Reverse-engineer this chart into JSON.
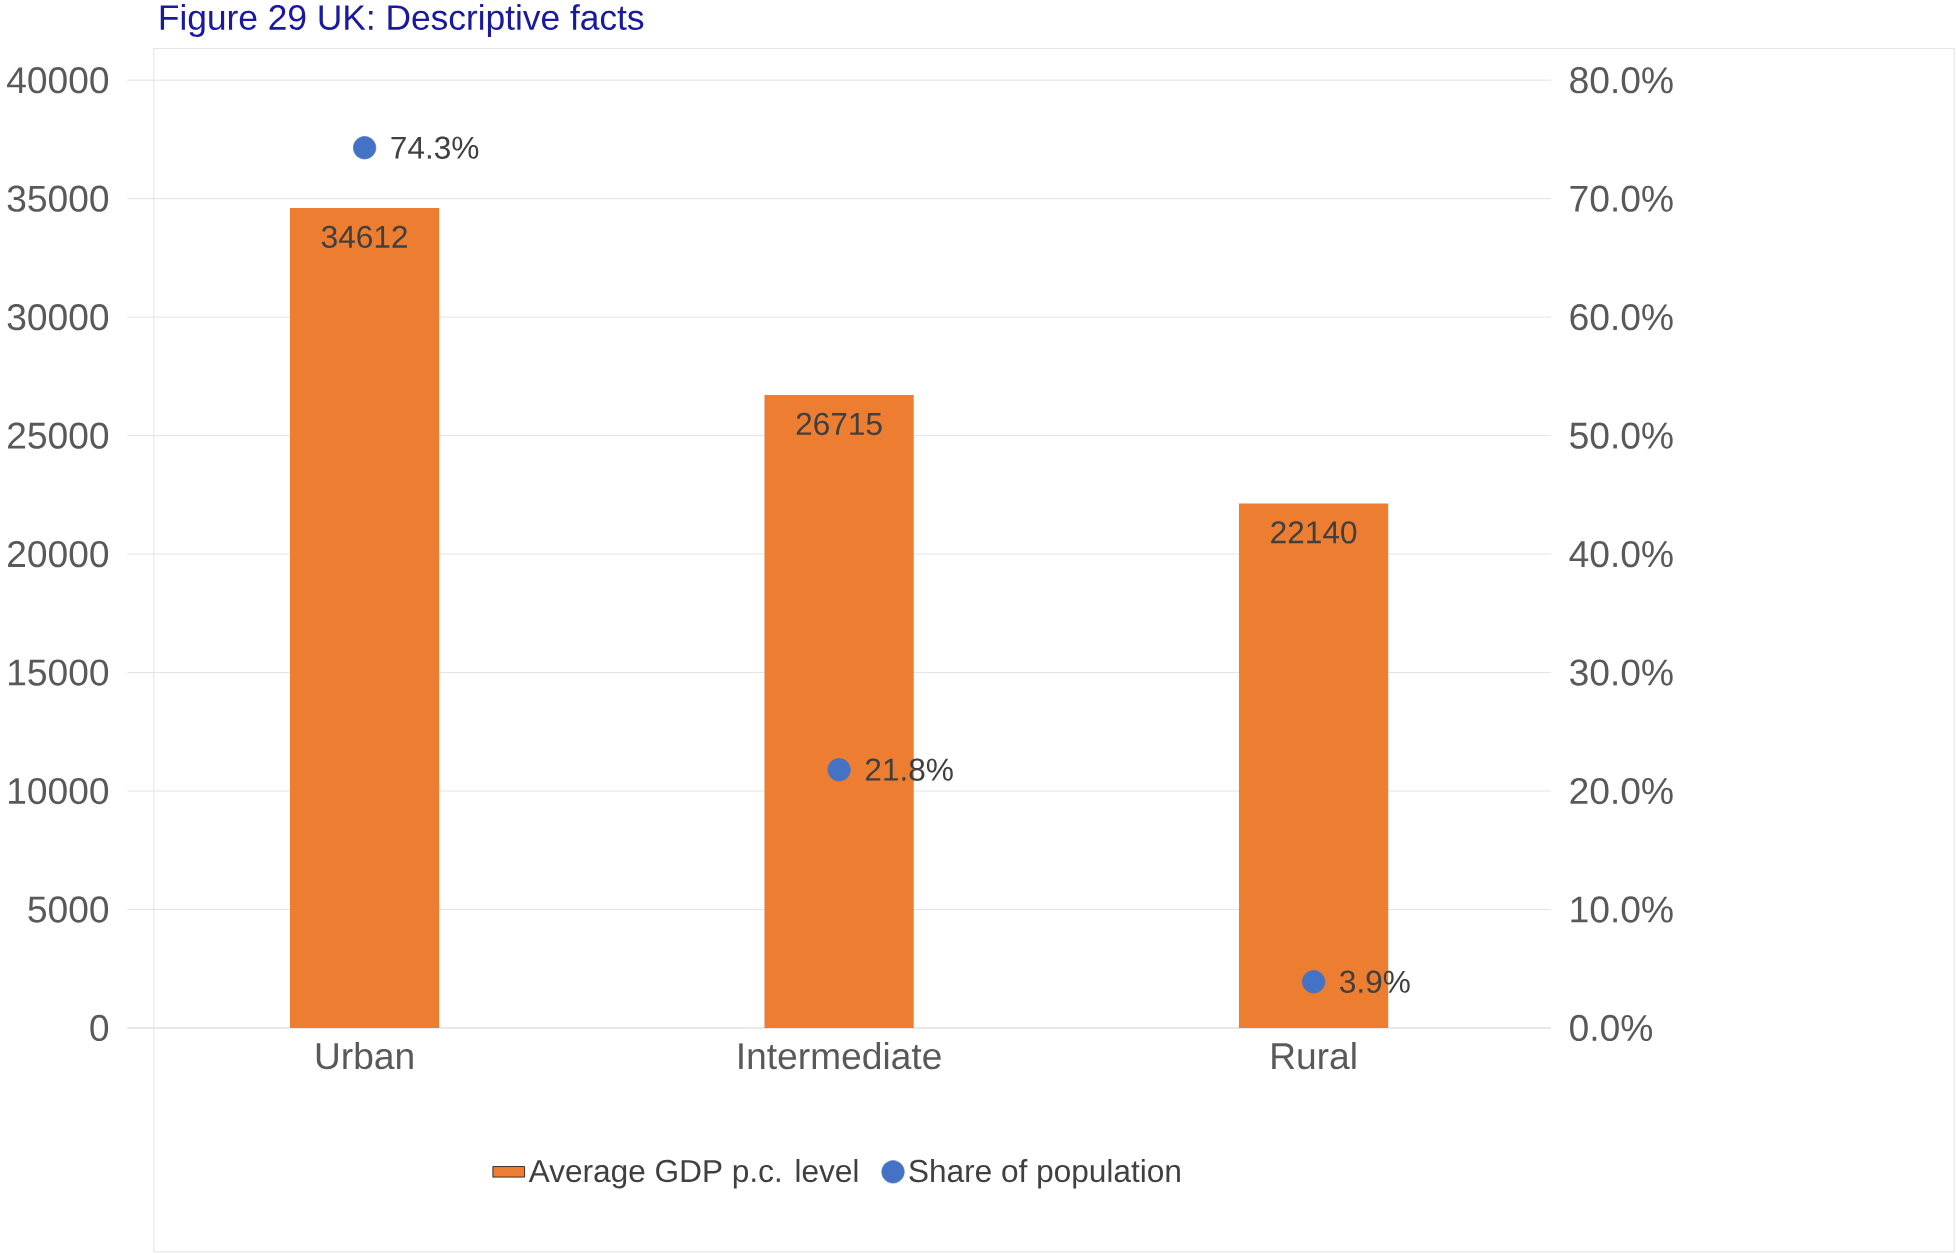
{
  "chart_data": {
    "type": "bar",
    "title": "Figure 29 UK: Descriptive facts",
    "categories": [
      "Urban",
      "Intermediate",
      "Rural"
    ],
    "series": [
      {
        "name": "Average GDP p.c. level",
        "type": "bar",
        "color": "#ed7d31",
        "values": [
          34612,
          26715,
          22140
        ],
        "value_labels": [
          "34612",
          "26715",
          "22140"
        ]
      },
      {
        "name": "Share of population",
        "type": "scatter",
        "axis": "y2",
        "color": "#4472c4",
        "values": [
          74.3,
          21.8,
          3.9
        ],
        "value_labels": [
          "74.3%",
          "21.8%",
          "3.9%"
        ]
      }
    ],
    "ylim": [
      0,
      40000
    ],
    "yticks": [
      0,
      5000,
      10000,
      15000,
      20000,
      25000,
      30000,
      35000,
      40000
    ],
    "y2lim": [
      0,
      80
    ],
    "y2ticks": [
      {
        "value": 0,
        "label": "0.0%"
      },
      {
        "value": 10,
        "label": "10.0%"
      },
      {
        "value": 20,
        "label": "20.0%"
      },
      {
        "value": 30,
        "label": "30.0%"
      },
      {
        "value": 40,
        "label": "40.0%"
      },
      {
        "value": 50,
        "label": "50.0%"
      },
      {
        "value": 60,
        "label": "60.0%"
      },
      {
        "value": 70,
        "label": "70.0%"
      },
      {
        "value": 80,
        "label": "80.0%"
      }
    ],
    "grid": "y",
    "legend": "bottom",
    "marker": "circle"
  }
}
